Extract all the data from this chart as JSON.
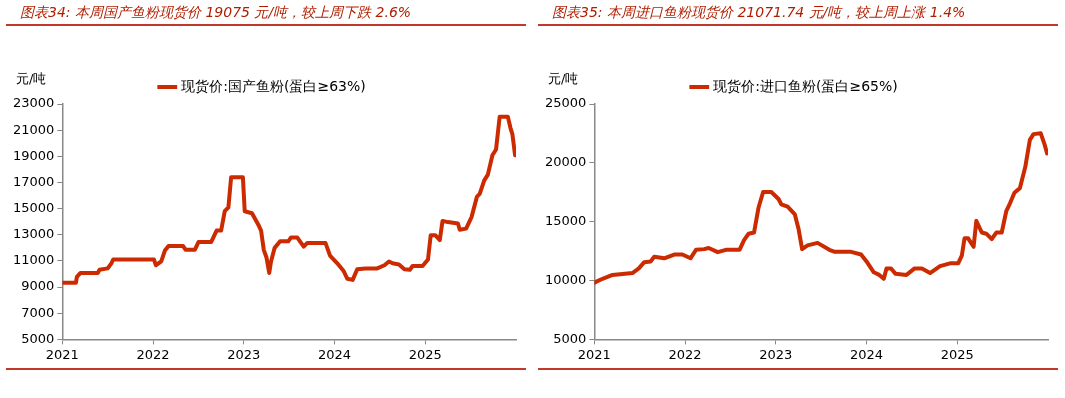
{
  "chart_data": [
    {
      "type": "line",
      "title": "图表34:  本周国产鱼粉现货价 19075 元/吨，较上周下跌 2.6%",
      "ylabel": "元/吨",
      "legend": "top",
      "xlim": [
        2021,
        2026
      ],
      "xticks": [
        2021,
        2022,
        2023,
        2024,
        2025
      ],
      "ylim": [
        5000,
        23000
      ],
      "yticks": [
        5000,
        7000,
        9000,
        11000,
        13000,
        15000,
        17000,
        19000,
        21000,
        23000
      ],
      "x": [
        2021.0,
        2021.15,
        2021.16,
        2021.2,
        2021.39,
        2021.41,
        2021.5,
        2021.54,
        2021.56,
        2022.01,
        2022.03,
        2022.09,
        2022.13,
        2022.17,
        2022.33,
        2022.36,
        2022.46,
        2022.5,
        2022.64,
        2022.7,
        2022.75,
        2022.79,
        2022.83,
        2022.86,
        2022.99,
        2023.01,
        2023.09,
        2023.16,
        2023.19,
        2023.22,
        2023.25,
        2023.28,
        2023.3,
        2023.34,
        2023.4,
        2023.49,
        2023.52,
        2023.59,
        2023.66,
        2023.7,
        2023.9,
        2023.95,
        2024.03,
        2024.1,
        2024.14,
        2024.2,
        2024.25,
        2024.34,
        2024.47,
        2024.55,
        2024.6,
        2024.64,
        2024.71,
        2024.77,
        2024.83,
        2024.86,
        2024.97,
        2025.03,
        2025.06,
        2025.11,
        2025.16,
        2025.19,
        2025.25,
        2025.36,
        2025.38,
        2025.45,
        2025.51,
        2025.57,
        2025.6,
        2025.65,
        2025.69,
        2025.74,
        2025.78,
        2025.82,
        2025.91,
        2025.94,
        2025.96,
        2025.99
      ],
      "series": [
        {
          "name": "现货价:国产鱼粉(蛋白≥63%)",
          "color": "#cc2a00",
          "values": [
            9340,
            9340,
            9780,
            10080,
            10080,
            10320,
            10430,
            10820,
            11110,
            11110,
            10670,
            10960,
            11790,
            12140,
            12140,
            11850,
            11850,
            12440,
            12440,
            13320,
            13320,
            14800,
            15090,
            17390,
            17390,
            14800,
            14650,
            13770,
            13320,
            11850,
            11260,
            10080,
            10960,
            12000,
            12500,
            12500,
            12790,
            12790,
            12090,
            12380,
            12380,
            11410,
            10820,
            10230,
            9640,
            9550,
            10370,
            10430,
            10430,
            10670,
            10960,
            10820,
            10730,
            10370,
            10320,
            10610,
            10610,
            11110,
            12970,
            12970,
            12590,
            14060,
            13970,
            13860,
            13380,
            13470,
            14350,
            15920,
            16130,
            17160,
            17600,
            19080,
            19520,
            22030,
            22030,
            21140,
            20700,
            19075
          ]
        }
      ]
    },
    {
      "type": "line",
      "title": "图表35:  本周进口鱼粉现货价 21071.74 元/吨，较上周上涨 1.4%",
      "ylabel": "元/吨",
      "legend": "top",
      "xlim": [
        2021,
        2026
      ],
      "xticks": [
        2021,
        2022,
        2023,
        2024,
        2025
      ],
      "ylim": [
        5000,
        25000
      ],
      "yticks": [
        5000,
        10000,
        15000,
        20000,
        25000
      ],
      "x": [
        2021.0,
        2021.09,
        2021.2,
        2021.42,
        2021.49,
        2021.55,
        2021.62,
        2021.66,
        2021.77,
        2021.88,
        2021.97,
        2022.06,
        2022.12,
        2022.21,
        2022.26,
        2022.36,
        2022.45,
        2022.6,
        2022.65,
        2022.7,
        2022.76,
        2022.81,
        2022.86,
        2022.95,
        2023.03,
        2023.06,
        2023.13,
        2023.21,
        2023.25,
        2023.29,
        2023.35,
        2023.46,
        2023.59,
        2023.65,
        2023.83,
        2023.94,
        2024.0,
        2024.08,
        2024.14,
        2024.19,
        2024.22,
        2024.27,
        2024.32,
        2024.44,
        2024.53,
        2024.61,
        2024.7,
        2024.81,
        2024.92,
        2025.01,
        2025.05,
        2025.08,
        2025.12,
        2025.18,
        2025.21,
        2025.27,
        2025.32,
        2025.38,
        2025.43,
        2025.49,
        2025.54,
        2025.58,
        2025.63,
        2025.69,
        2025.75,
        2025.8,
        2025.84,
        2025.92,
        2025.96,
        2025.99
      ],
      "series": [
        {
          "name": "现货价:进口鱼粉(蛋白≥65%)",
          "color": "#cc2a00",
          "values": [
            9820,
            10150,
            10480,
            10640,
            11030,
            11560,
            11620,
            12020,
            11890,
            12210,
            12210,
            11890,
            12610,
            12670,
            12770,
            12410,
            12610,
            12610,
            13430,
            13980,
            14080,
            16210,
            17520,
            17520,
            16930,
            16480,
            16280,
            15620,
            14410,
            12670,
            12990,
            13200,
            12610,
            12440,
            12440,
            12210,
            11620,
            10700,
            10480,
            10150,
            11030,
            11030,
            10570,
            10480,
            11030,
            11030,
            10640,
            11230,
            11460,
            11460,
            12110,
            13590,
            13590,
            12870,
            15070,
            14080,
            13980,
            13520,
            14080,
            14080,
            15890,
            16540,
            17460,
            17850,
            19660,
            21950,
            22440,
            22510,
            21620,
            20800
          ]
        }
      ]
    }
  ]
}
